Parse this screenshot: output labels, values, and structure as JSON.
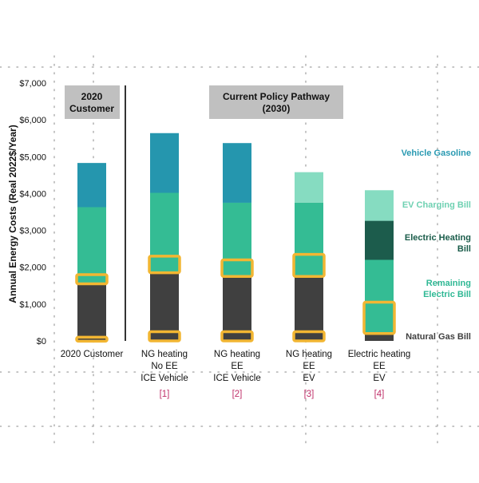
{
  "chart_data": {
    "type": "bar",
    "stacked": true,
    "ylabel": "Annual Energy Costs (Real 2022$/Year)",
    "ylim": [
      0,
      7000
    ],
    "yticks": [
      0,
      1000,
      2000,
      3000,
      4000,
      5000,
      6000,
      7000
    ],
    "ytick_labels": [
      "$0",
      "$1,000",
      "$2,000",
      "$3,000",
      "$4,000",
      "$5,000",
      "$6,000",
      "$7,000"
    ],
    "groups": [
      {
        "label": "2020 Customer",
        "start": 0,
        "end": 0
      },
      {
        "label": "Current Policy Pathway (2030)",
        "start": 1,
        "end": 4
      }
    ],
    "categories": [
      {
        "lines": [
          "2020 Customer"
        ],
        "ref": ""
      },
      {
        "lines": [
          "NG heating",
          "No EE",
          "ICE Vehicle"
        ],
        "ref": "[1]"
      },
      {
        "lines": [
          "NG heating",
          "EE",
          "ICE Vehicle"
        ],
        "ref": "[2]"
      },
      {
        "lines": [
          "NG heating",
          "EE",
          "EV"
        ],
        "ref": "[3]"
      },
      {
        "lines": [
          "Electric heating",
          "EE",
          "EV"
        ],
        "ref": "[4]"
      }
    ],
    "series": [
      {
        "name": "Natural Gas Bill",
        "label_lines": [
          "Natural Gas Bill"
        ],
        "color": "#404040",
        "label_color": "#404040",
        "values": [
          1550,
          1850,
          1750,
          1750,
          200
        ]
      },
      {
        "name": "Remaining Electric Bill",
        "label_lines": [
          "Remaining",
          "Electric Bill"
        ],
        "color": "#34bc94",
        "label_color": "#2fb894",
        "values": [
          2080,
          2170,
          2000,
          2000,
          2000
        ]
      },
      {
        "name": "Electric Heating Bill",
        "label_lines": [
          "Electric Heating",
          "Bill"
        ],
        "color": "#1c5c4c",
        "label_color": "#1a5c4a",
        "values": [
          0,
          0,
          0,
          0,
          1060
        ]
      },
      {
        "name": "EV Charging Bill",
        "label_lines": [
          "EV Charging Bill"
        ],
        "color": "#86dcc1",
        "label_color": "#6fd1b2",
        "values": [
          0,
          0,
          0,
          830,
          830
        ]
      },
      {
        "name": "Vehicle Gasoline",
        "label_lines": [
          "Vehicle Gasoline"
        ],
        "color": "#2596ae",
        "label_color": "#2a9ab2",
        "values": [
          1200,
          1620,
          1620,
          0,
          0
        ]
      }
    ],
    "highlights": [
      {
        "category": 0,
        "from": 1550,
        "to": 1800
      },
      {
        "category": 0,
        "from": 0,
        "to": 100
      },
      {
        "category": 1,
        "from": 1850,
        "to": 2300
      },
      {
        "category": 1,
        "from": 0,
        "to": 250
      },
      {
        "category": 2,
        "from": 1750,
        "to": 2200
      },
      {
        "category": 2,
        "from": 0,
        "to": 250
      },
      {
        "category": 3,
        "from": 1750,
        "to": 2350
      },
      {
        "category": 3,
        "from": 0,
        "to": 250
      },
      {
        "category": 4,
        "from": 200,
        "to": 1050
      }
    ],
    "colors": {
      "highlight": "#f2b632",
      "group_box": "#c0c0c0",
      "ref_label": "#c0306a",
      "axis_text": "#111111"
    }
  }
}
